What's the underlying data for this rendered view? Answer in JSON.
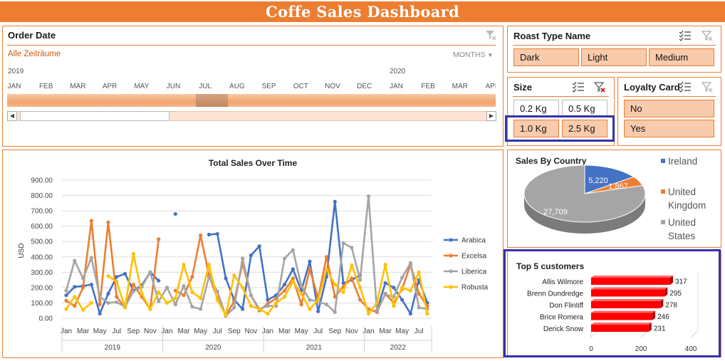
{
  "dashboard": {
    "title": "Coffe Sales Dashboard"
  },
  "timeline": {
    "header": "Order Date",
    "range_label": "Alle Zeiträume",
    "level_label": "MONTHS",
    "years": [
      "2019",
      "2020"
    ],
    "months": [
      "JAN",
      "FEB",
      "MAR",
      "APR",
      "MAY",
      "JUN",
      "JUL",
      "AUG",
      "SEP",
      "OCT",
      "NOV",
      "DEC",
      "JAN",
      "FEB",
      "MAR",
      "APR"
    ]
  },
  "roast_slicer": {
    "header": "Roast Type Name",
    "items": [
      "Dark",
      "Light",
      "Medium"
    ]
  },
  "size_slicer": {
    "header": "Size",
    "items": [
      "0.2 Kg",
      "0.5 Kg",
      "1.0 Kg",
      "2.5 Kg"
    ]
  },
  "loyalty_slicer": {
    "header": "Loyalty Card",
    "items": [
      "No",
      "Yes"
    ]
  },
  "icons": {
    "multiselect": "multi-select-icon",
    "clear_filter": "clear-filter-icon",
    "filter": "filter-icon"
  },
  "colors": {
    "accent": "#ED7D31",
    "arabica": "#4472C4",
    "excelsa": "#ED7D31",
    "liberica": "#A5A5A5",
    "robusta": "#FFC000",
    "bars": "#FF0000",
    "highlight": "#3333A8"
  },
  "line_chart": {
    "title": "Total Sales Over Time",
    "ylabel": "USD",
    "yticks": [
      "900.00",
      "800.00",
      "700.00",
      "600.00",
      "500.00",
      "400.00",
      "300.00",
      "200.00",
      "100.00",
      "0.00"
    ],
    "ylim": [
      0,
      900
    ],
    "xtick_labels": [
      "Jan",
      "Mar",
      "May",
      "Jul",
      "Sep",
      "Nov",
      "Jan",
      "Mar",
      "May",
      "Jul",
      "Sep",
      "Nov",
      "Jan",
      "Mar",
      "May",
      "Jul",
      "Sep",
      "Nov",
      "Jan",
      "Mar",
      "May",
      "Jul"
    ],
    "year_labels": [
      "2019",
      "2020",
      "2021",
      "2022"
    ]
  },
  "pie_chart": {
    "title": "Sales By Country",
    "legend": [
      "Ireland",
      "United Kingdom",
      "United States"
    ],
    "labels": [
      "5,220",
      "1,867",
      "27,709"
    ]
  },
  "bar_chart": {
    "title": "Top 5 customers",
    "xticks": [
      "0",
      "200",
      "400"
    ]
  },
  "chart_data": [
    {
      "type": "line",
      "title": "Total Sales Over Time",
      "ylabel": "USD",
      "ylim": [
        0,
        900
      ],
      "x": [
        "2019-01",
        "2019-02",
        "2019-03",
        "2019-04",
        "2019-05",
        "2019-06",
        "2019-07",
        "2019-08",
        "2019-09",
        "2019-10",
        "2019-11",
        "2019-12",
        "2020-01",
        "2020-02",
        "2020-03",
        "2020-04",
        "2020-05",
        "2020-06",
        "2020-07",
        "2020-08",
        "2020-09",
        "2020-10",
        "2020-11",
        "2020-12",
        "2021-01",
        "2021-02",
        "2021-03",
        "2021-04",
        "2021-05",
        "2021-06",
        "2021-07",
        "2021-08",
        "2021-09",
        "2021-10",
        "2021-11",
        "2021-12",
        "2022-01",
        "2022-02",
        "2022-03",
        "2022-04",
        "2022-05",
        "2022-06",
        "2022-07",
        "2022-08"
      ],
      "series": [
        {
          "name": "Arabica",
          "values": [
            150,
            205,
            210,
            220,
            30,
            160,
            270,
            290,
            180,
            215,
            300,
            245,
            null,
            680,
            null,
            null,
            null,
            545,
            550,
            260,
            120,
            60,
            410,
            470,
            120,
            150,
            220,
            320,
            180,
            370,
            45,
            270,
            760,
            230,
            250,
            280,
            null,
            50,
            230,
            200,
            120,
            30,
            250,
            100
          ]
        },
        {
          "name": "Excelsa",
          "values": [
            115,
            80,
            200,
            635,
            90,
            625,
            140,
            70,
            220,
            140,
            60,
            515,
            null,
            180,
            150,
            270,
            540,
            280,
            130,
            20,
            110,
            360,
            150,
            50,
            95,
            130,
            180,
            260,
            90,
            320,
            130,
            400,
            140,
            205,
            260,
            120,
            60,
            40,
            160,
            100,
            190,
            350,
            160,
            80
          ]
        },
        {
          "name": "Liberica",
          "values": [
            180,
            375,
            260,
            395,
            140,
            100,
            105,
            75,
            175,
            205,
            300,
            110,
            200,
            90,
            210,
            75,
            60,
            270,
            175,
            15,
            70,
            390,
            150,
            60,
            80,
            80,
            390,
            445,
            210,
            120,
            110,
            90,
            40,
            490,
            460,
            250,
            795,
            50,
            155,
            140,
            265,
            360,
            70,
            60
          ]
        },
        {
          "name": "Robusta",
          "values": [
            60,
            140,
            55,
            100,
            null,
            275,
            240,
            70,
            420,
            160,
            60,
            170,
            100,
            130,
            350,
            170,
            130,
            350,
            120,
            20,
            280,
            200,
            80,
            60,
            30,
            100,
            140,
            240,
            160,
            60,
            120,
            320,
            220,
            170,
            345,
            200,
            30,
            100,
            350,
            80,
            200,
            180,
            300,
            30
          ]
        }
      ]
    },
    {
      "type": "pie",
      "title": "Sales By Country",
      "categories": [
        "Ireland",
        "United Kingdom",
        "United States"
      ],
      "values": [
        5220,
        1867,
        27709
      ],
      "legend": "right"
    },
    {
      "type": "bar",
      "title": "Top 5 customers",
      "categories": [
        "Allis Wilmore",
        "Brenn Dundredge",
        "Don Flintiff",
        "Brice Romera",
        "Derick Snow"
      ],
      "values": [
        317,
        295,
        278,
        246,
        231
      ],
      "xlim": [
        0,
        400
      ]
    }
  ]
}
